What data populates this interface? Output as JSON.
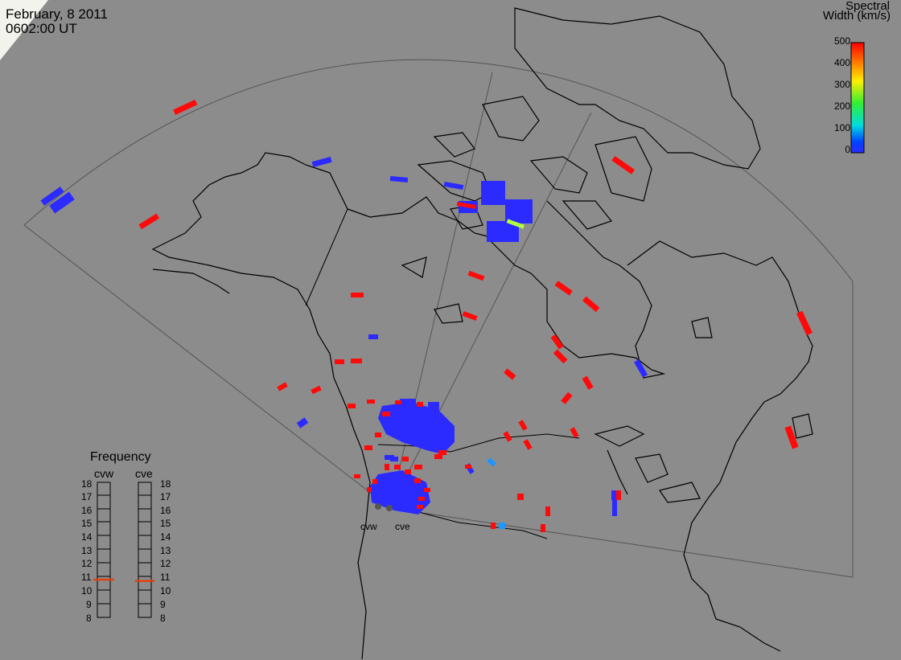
{
  "header": {
    "date": "February, 8 2011",
    "time": "0602:00 UT"
  },
  "colorbar": {
    "title_line1": "Spectral",
    "title_line2": "Width (km/s)",
    "ticks": [
      "500",
      "400",
      "300",
      "200",
      "100",
      "0"
    ],
    "colors": [
      "#ff0000",
      "#ff8800",
      "#ffee00",
      "#33ee33",
      "#00dddd",
      "#0044ff",
      "#2b2bff"
    ]
  },
  "frequency": {
    "title": "Frequency",
    "radars": [
      "cvw",
      "cve"
    ],
    "scale": [
      "18",
      "17",
      "16",
      "15",
      "14",
      "13",
      "12",
      "11",
      "10",
      "9",
      "8"
    ],
    "cvw_mhz": 10.8,
    "cve_mhz": 10.7
  },
  "sites": [
    "cvw",
    "cve"
  ],
  "colors": {
    "background": "#8c8c8c",
    "coastline": "#000000",
    "low_width": "#2b2bff",
    "high_width": "#ff0a0a",
    "mid_width": "#b4ff3c",
    "light_blue": "#1e96ff",
    "frequency_marker": "#e04010"
  }
}
